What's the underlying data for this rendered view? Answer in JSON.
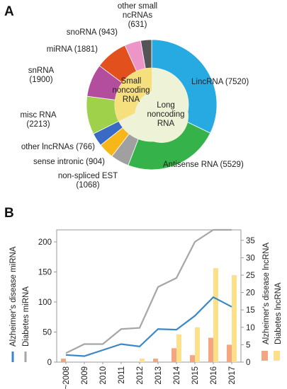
{
  "panels": {
    "a": "A",
    "b": "B"
  },
  "chart_data": [
    {
      "type": "pie",
      "variant": "donut",
      "outer_ring": [
        {
          "name": "LincRNA",
          "value": 7520,
          "label": "LincRNA (7520)",
          "color": "#27aae1"
        },
        {
          "name": "Antisense RNA",
          "value": 5529,
          "label": "Antisense RNA (5529)",
          "color": "#35b34a"
        },
        {
          "name": "non-spliced EST",
          "value": 1068,
          "label": "non-spliced EST (1068)",
          "label_lines": [
            "non-spliced EST",
            "(1068)"
          ],
          "color": "#a0a0a0"
        },
        {
          "name": "sense intronic",
          "value": 904,
          "label": "sense intronic (904)",
          "color": "#f7b718"
        },
        {
          "name": "other lncRNAs",
          "value": 766,
          "label": "other lncRNAs (766)",
          "color": "#3a6bc4"
        },
        {
          "name": "misc RNA",
          "value": 2213,
          "label": "misc RNA (2213)",
          "label_lines": [
            "misc RNA",
            "(2213)"
          ],
          "color": "#9fd24a"
        },
        {
          "name": "snRNA",
          "value": 1900,
          "label": "snRNA (1900)",
          "label_lines": [
            "snRNA",
            "(1900)"
          ],
          "color": "#b34d9e"
        },
        {
          "name": "miRNA",
          "value": 1881,
          "label": "miRNA (1881)",
          "color": "#e2501d"
        },
        {
          "name": "snoRNA",
          "value": 943,
          "label": "snoRNA (943)",
          "color": "#ee95c8"
        },
        {
          "name": "other small ncRNAs",
          "value": 631,
          "label": "other small ncRNAs (631)",
          "label_lines": [
            "other small",
            "ncRNAs",
            "(631)"
          ],
          "color": "#555555"
        }
      ],
      "inner_groups": [
        {
          "label_lines": [
            "Small",
            "noncoding",
            "RNA"
          ],
          "color": "#f6e07e"
        },
        {
          "label_lines": [
            "Long",
            "noncoding",
            "RNA"
          ],
          "color": "#eef2d6"
        }
      ]
    },
    {
      "type": "line+bar",
      "categories": [
        "~2008",
        "2009",
        "2010",
        "2011",
        "2012",
        "2013",
        "2014",
        "2015",
        "2016",
        "2017"
      ],
      "left_axis": {
        "ylim": [
          0,
          220
        ],
        "ticks": [
          0,
          50,
          100,
          150,
          200
        ]
      },
      "right_axis": {
        "ylim": [
          0,
          38
        ],
        "ticks": [
          0,
          5,
          10,
          15,
          20,
          25,
          30,
          35
        ]
      },
      "series": [
        {
          "name": "Alzheimer's disease miRNA",
          "type": "line",
          "axis": "left",
          "color": "#3a87c8",
          "values": [
            12,
            10,
            20,
            30,
            26,
            55,
            54,
            77,
            108,
            92
          ]
        },
        {
          "name": "Diabetes miRNA",
          "type": "line",
          "axis": "left",
          "color": "#a6a6a6",
          "values": [
            15,
            30,
            30,
            55,
            57,
            125,
            140,
            200,
            225,
            265
          ]
        },
        {
          "name": "Alzheimer's disease lncRNA",
          "type": "bar",
          "axis": "right",
          "color": "#f4a582",
          "values": [
            1,
            0,
            0,
            0,
            0,
            1,
            4,
            2,
            7,
            5
          ]
        },
        {
          "name": "Diabetes lncRNA",
          "type": "bar",
          "axis": "right",
          "color": "#fce08a",
          "values": [
            0,
            0,
            0,
            0,
            1,
            0,
            8,
            10,
            27,
            25
          ]
        }
      ]
    }
  ]
}
